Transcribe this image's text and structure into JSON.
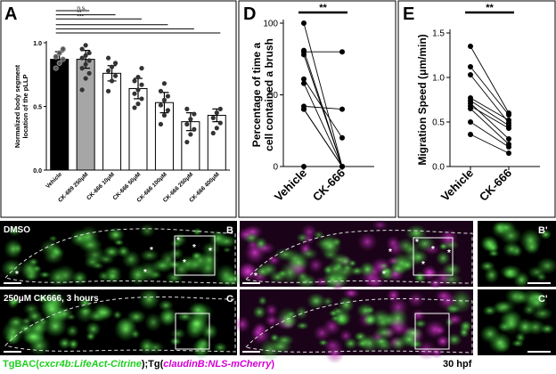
{
  "chart_data": [
    {
      "panel": "A",
      "type": "bar",
      "ylabel": "Normalized body segment\nlocation of the pLLP",
      "ylim": [
        0,
        1.0
      ],
      "yticks": [
        "0.0",
        "0.5",
        "1.0"
      ],
      "categories": [
        "Vehicle",
        "CK-689 250μM",
        "CK-666 10μM",
        "CK-666 50μM",
        "CK-666 100μM",
        "CK-666 250μM",
        "CK-666 400μM"
      ],
      "values": [
        0.87,
        0.87,
        0.76,
        0.64,
        0.53,
        0.38,
        0.43
      ],
      "errors": [
        0.06,
        0.07,
        0.06,
        0.08,
        0.08,
        0.07,
        0.05
      ],
      "bar_fills": [
        "#000000",
        "#a6a6a6",
        "#ffffff",
        "#ffffff",
        "#ffffff",
        "#ffffff",
        "#ffffff"
      ],
      "points": [
        [
          0.8,
          0.84,
          0.87,
          0.89,
          0.92,
          0.95
        ],
        [
          0.63,
          0.72,
          0.76,
          0.8,
          0.83,
          0.86,
          0.88,
          0.9,
          0.92,
          0.95,
          0.98
        ],
        [
          0.62,
          0.7,
          0.74,
          0.78,
          0.81,
          0.84,
          0.88
        ],
        [
          0.49,
          0.52,
          0.56,
          0.6,
          0.63,
          0.67,
          0.7,
          0.73,
          0.8
        ],
        [
          0.36,
          0.43,
          0.47,
          0.51,
          0.55,
          0.58,
          0.62,
          0.68
        ],
        [
          0.22,
          0.28,
          0.32,
          0.36,
          0.4,
          0.44,
          0.48
        ],
        [
          0.29,
          0.33,
          0.37,
          0.41,
          0.45,
          0.48
        ]
      ],
      "significance": [
        {
          "label": "n.s.",
          "from": 0,
          "to": 1
        },
        {
          "label": "**",
          "from": 0,
          "to": 2
        },
        {
          "label": "***",
          "from": 0,
          "to": 3
        },
        {
          "label": "",
          "from": 0,
          "to": 4
        },
        {
          "label": "",
          "from": 0,
          "to": 5
        },
        {
          "label": "",
          "from": 0,
          "to": 6
        }
      ]
    },
    {
      "panel": "D",
      "type": "line",
      "ylabel": "Percentage of time a\ncell contained a brush",
      "ylim": [
        0,
        100
      ],
      "yticks": [
        "0",
        "50",
        "100"
      ],
      "categories": [
        "Vehicle",
        "CK-666"
      ],
      "pairs": [
        [
          100,
          0
        ],
        [
          81,
          0
        ],
        [
          80,
          80
        ],
        [
          78,
          0
        ],
        [
          61,
          20
        ],
        [
          58,
          0
        ],
        [
          42,
          40
        ],
        [
          40,
          0
        ],
        [
          40,
          0
        ],
        [
          0,
          0
        ]
      ],
      "significance": "**"
    },
    {
      "panel": "E",
      "type": "line",
      "ylabel": "Migration Speed (μm/min)",
      "ylim": [
        0,
        1.5
      ],
      "yticks": [
        "0.0",
        "0.5",
        "1.0",
        "1.5"
      ],
      "categories": [
        "Vehicle",
        "CK-666"
      ],
      "pairs": [
        [
          1.35,
          0.6
        ],
        [
          1.12,
          0.58
        ],
        [
          1.03,
          0.49
        ],
        [
          0.77,
          0.52
        ],
        [
          0.74,
          0.46
        ],
        [
          0.71,
          0.31
        ],
        [
          0.68,
          0.43
        ],
        [
          0.65,
          0.25
        ],
        [
          0.5,
          0.22
        ],
        [
          0.36,
          0.15
        ]
      ],
      "significance": "**"
    }
  ],
  "panel_letters": {
    "A": "A",
    "D": "D",
    "E": "E",
    "B": "B",
    "C": "C",
    "Bp": "B'",
    "Cp": "C'"
  },
  "image_labels": {
    "dmso": "DMSO",
    "ck666": "250μM CK666, 3 hours"
  },
  "caption": {
    "prefix": "TgBAC(",
    "gene1": "cxcr4b:LifeAct-Citrine",
    "mid": ");Tg(",
    "gene2": "claudinB:NLS-mCherry",
    "suffix": ")"
  },
  "timepoint": "30 hpf",
  "colors": {
    "green": "#2ed12e",
    "magenta": "#c61fb8",
    "caption_green": "#1ecf1e",
    "caption_magenta": "#d400d4"
  }
}
